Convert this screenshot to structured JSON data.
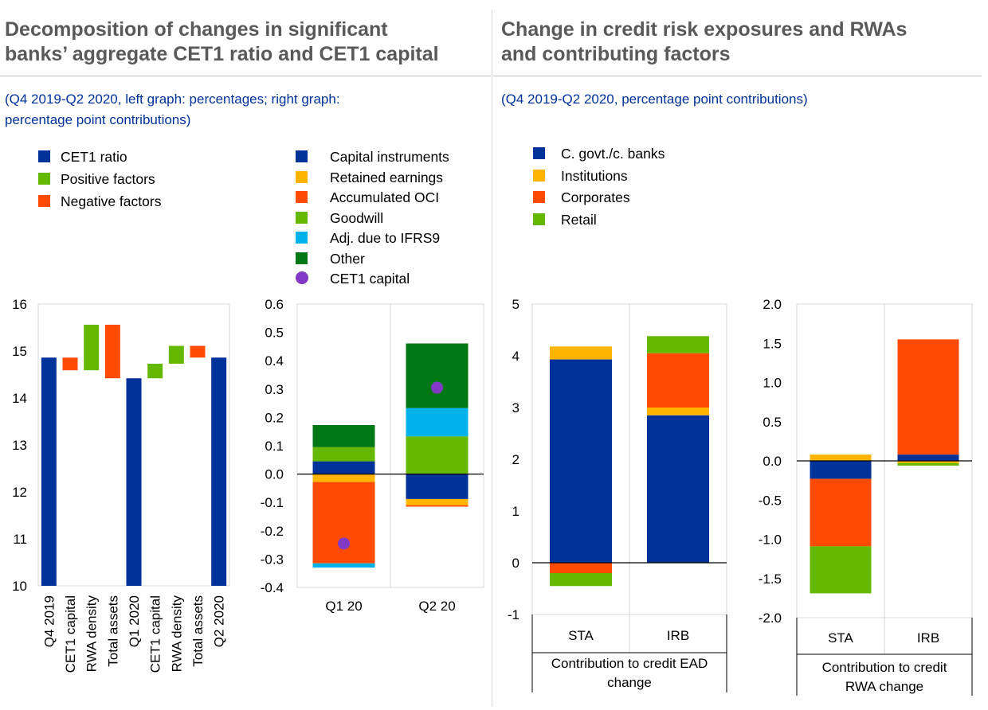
{
  "left_panel": {
    "title_line1": "Decomposition of changes in significant",
    "title_line2": "banks’ aggregate CET1 ratio and CET1 capital",
    "subtitle_line1": "(Q4 2019-Q2 2020, left graph: percentages; right graph:",
    "subtitle_line2": "percentage point contributions)"
  },
  "right_panel": {
    "title_line1": "Change in credit risk exposures and RWAs",
    "title_line2": "and contributing factors",
    "subtitle_line1": "(Q4 2019-Q2 2020, percentage point contributions)"
  },
  "legends": {
    "waterfall": [
      {
        "label": "CET1 ratio",
        "color": "#003299"
      },
      {
        "label": "Positive factors",
        "color": "#65b800"
      },
      {
        "label": "Negative factors",
        "color": "#ff4b00"
      }
    ],
    "capital": [
      {
        "label": "Capital instruments",
        "color": "#003299",
        "marker": "square"
      },
      {
        "label": "Retained earnings",
        "color": "#ffb400",
        "marker": "square"
      },
      {
        "label": "Accumulated OCI",
        "color": "#ff4b00",
        "marker": "square"
      },
      {
        "label": "Goodwill",
        "color": "#65b800",
        "marker": "square"
      },
      {
        "label": "Adj. due to IFRS9",
        "color": "#00b1ea",
        "marker": "square"
      },
      {
        "label": "Other",
        "color": "#007816",
        "marker": "square"
      },
      {
        "label": "CET1 capital",
        "color": "#8139c6",
        "marker": "dot"
      }
    ],
    "exposures": [
      {
        "label": "C. govt./c. banks",
        "color": "#003299"
      },
      {
        "label": "Institutions",
        "color": "#ffb400"
      },
      {
        "label": "Corporates",
        "color": "#ff4b00"
      },
      {
        "label": "Retail",
        "color": "#65b800"
      }
    ]
  },
  "chart_data": [
    {
      "id": "cet1_ratio_waterfall",
      "type": "bar",
      "ylim": [
        10,
        16
      ],
      "yticks": [
        10,
        11,
        12,
        13,
        14,
        15,
        16
      ],
      "categories": [
        "Q4 2019",
        "CET1 capital",
        "RWA density",
        "Total assets",
        "Q1 2020",
        "CET1 capital",
        "RWA density",
        "Total assets",
        "Q2 2020"
      ],
      "bars": [
        {
          "from": 10,
          "to": 14.86,
          "kind": "CET1 ratio"
        },
        {
          "from": 14.86,
          "to": 14.59,
          "kind": "Negative factors"
        },
        {
          "from": 14.59,
          "to": 15.56,
          "kind": "Positive factors"
        },
        {
          "from": 15.56,
          "to": 14.42,
          "kind": "Negative factors"
        },
        {
          "from": 10,
          "to": 14.42,
          "kind": "CET1 ratio"
        },
        {
          "from": 14.42,
          "to": 14.73,
          "kind": "Positive factors"
        },
        {
          "from": 14.73,
          "to": 15.11,
          "kind": "Positive factors"
        },
        {
          "from": 15.11,
          "to": 14.86,
          "kind": "Negative factors"
        },
        {
          "from": 10,
          "to": 14.86,
          "kind": "CET1 ratio"
        }
      ]
    },
    {
      "id": "cet1_capital_contributions",
      "type": "bar",
      "stacked": true,
      "ylim": [
        -0.4,
        0.6
      ],
      "yticks": [
        "-0.4",
        "-0.3",
        "-0.2",
        "-0.1",
        "0.0",
        "0.1",
        "0.2",
        "0.3",
        "0.4",
        "0.5",
        "0.6"
      ],
      "categories": [
        "Q1 20",
        "Q2 20"
      ],
      "series": [
        {
          "name": "Capital instruments",
          "values": [
            0.045,
            -0.088
          ]
        },
        {
          "name": "Retained earnings",
          "values": [
            -0.028,
            -0.022
          ]
        },
        {
          "name": "Accumulated OCI",
          "values": [
            -0.287,
            -0.005
          ]
        },
        {
          "name": "Goodwill",
          "values": [
            0.05,
            0.133
          ]
        },
        {
          "name": "Adj. due to IFRS9",
          "values": [
            -0.015,
            0.1
          ]
        },
        {
          "name": "Other",
          "values": [
            0.078,
            0.228
          ]
        }
      ],
      "markers": {
        "name": "CET1 capital",
        "values": [
          -0.245,
          0.305
        ]
      }
    },
    {
      "id": "credit_ead_change",
      "type": "bar",
      "stacked": true,
      "ylim": [
        -1,
        5
      ],
      "yticks": [
        "-1",
        "0",
        "1",
        "2",
        "3",
        "4",
        "5"
      ],
      "categories": [
        "STA",
        "IRB"
      ],
      "xlabel_lines": [
        "Contribution to credit EAD",
        "change"
      ],
      "series": [
        {
          "name": "C. govt./c. banks",
          "values": [
            3.93,
            2.85
          ]
        },
        {
          "name": "Institutions",
          "values": [
            0.25,
            0.15
          ]
        },
        {
          "name": "Corporates",
          "values": [
            -0.2,
            1.05
          ]
        },
        {
          "name": "Retail",
          "values": [
            -0.25,
            0.33
          ]
        }
      ]
    },
    {
      "id": "credit_rwa_change",
      "type": "bar",
      "stacked": true,
      "ylim": [
        -2,
        2
      ],
      "yticks": [
        "-2.0",
        "-1.5",
        "-1.0",
        "-0.5",
        "0.0",
        "0.5",
        "1.0",
        "1.5",
        "2.0"
      ],
      "categories": [
        "STA",
        "IRB"
      ],
      "xlabel_lines": [
        "Contribution to credit",
        "RWA change"
      ],
      "series": [
        {
          "name": "C. govt./c. banks",
          "values": [
            -0.23,
            0.08
          ]
        },
        {
          "name": "Institutions",
          "values": [
            0.08,
            -0.03
          ]
        },
        {
          "name": "Corporates",
          "values": [
            -0.86,
            1.47
          ]
        },
        {
          "name": "Retail",
          "values": [
            -0.6,
            -0.03
          ]
        }
      ]
    }
  ]
}
